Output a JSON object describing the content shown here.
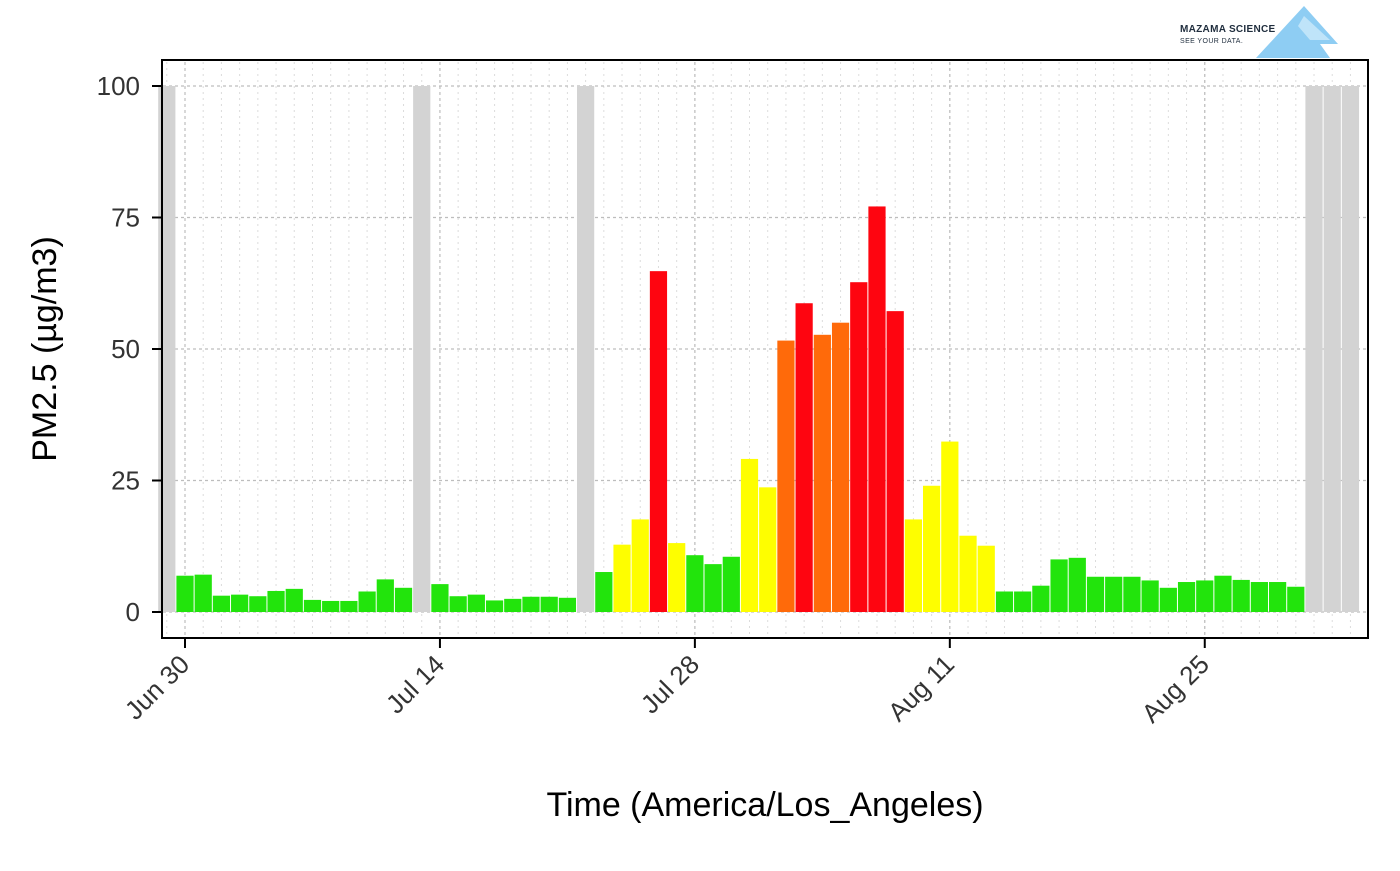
{
  "logo": {
    "title": "MAZAMA SCIENCE",
    "tagline": "SEE YOUR DATA."
  },
  "chart_data": {
    "type": "bar",
    "xlabel": "Time (America/Los_Angeles)",
    "ylabel": "PM2.5 (µg/m3)",
    "ylim": [
      0,
      100
    ],
    "yticks": [
      0,
      25,
      50,
      75,
      100
    ],
    "xticks": [
      "Jun 30",
      "Jul 14",
      "Jul 28",
      "Aug 11",
      "Aug 25"
    ],
    "xtick_dates": [
      "2023-06-30",
      "2023-07-14",
      "2023-07-28",
      "2023-08-11",
      "2023-08-25"
    ],
    "start_date": "2023-06-30",
    "grid": true,
    "colors": {
      "missing": "#d3d3d3",
      "good": "#22e40c",
      "moderate": "#fefe00",
      "usg": "#ff6a0a",
      "unhealthy": "#fe0510"
    },
    "bars": [
      {
        "date": "2023-06-29",
        "value": 100,
        "category": "missing"
      },
      {
        "date": "2023-06-30",
        "value": 6.9,
        "category": "good"
      },
      {
        "date": "2023-07-01",
        "value": 7.1,
        "category": "good"
      },
      {
        "date": "2023-07-02",
        "value": 3.1,
        "category": "good"
      },
      {
        "date": "2023-07-03",
        "value": 3.3,
        "category": "good"
      },
      {
        "date": "2023-07-04",
        "value": 3.0,
        "category": "good"
      },
      {
        "date": "2023-07-05",
        "value": 4.0,
        "category": "good"
      },
      {
        "date": "2023-07-06",
        "value": 4.4,
        "category": "good"
      },
      {
        "date": "2023-07-07",
        "value": 2.3,
        "category": "good"
      },
      {
        "date": "2023-07-08",
        "value": 2.1,
        "category": "good"
      },
      {
        "date": "2023-07-09",
        "value": 2.1,
        "category": "good"
      },
      {
        "date": "2023-07-10",
        "value": 3.9,
        "category": "good"
      },
      {
        "date": "2023-07-11",
        "value": 6.2,
        "category": "good"
      },
      {
        "date": "2023-07-12",
        "value": 4.6,
        "category": "good"
      },
      {
        "date": "2023-07-13",
        "value": 100,
        "category": "missing"
      },
      {
        "date": "2023-07-14",
        "value": 5.3,
        "category": "good"
      },
      {
        "date": "2023-07-15",
        "value": 3.0,
        "category": "good"
      },
      {
        "date": "2023-07-16",
        "value": 3.3,
        "category": "good"
      },
      {
        "date": "2023-07-17",
        "value": 2.2,
        "category": "good"
      },
      {
        "date": "2023-07-18",
        "value": 2.5,
        "category": "good"
      },
      {
        "date": "2023-07-19",
        "value": 2.9,
        "category": "good"
      },
      {
        "date": "2023-07-20",
        "value": 2.9,
        "category": "good"
      },
      {
        "date": "2023-07-21",
        "value": 2.7,
        "category": "good"
      },
      {
        "date": "2023-07-22",
        "value": 100,
        "category": "missing"
      },
      {
        "date": "2023-07-23",
        "value": 7.6,
        "category": "good"
      },
      {
        "date": "2023-07-24",
        "value": 12.8,
        "category": "moderate"
      },
      {
        "date": "2023-07-25",
        "value": 17.6,
        "category": "moderate"
      },
      {
        "date": "2023-07-26",
        "value": 64.8,
        "category": "unhealthy"
      },
      {
        "date": "2023-07-27",
        "value": 13.1,
        "category": "moderate"
      },
      {
        "date": "2023-07-28",
        "value": 10.8,
        "category": "good"
      },
      {
        "date": "2023-07-29",
        "value": 9.1,
        "category": "good"
      },
      {
        "date": "2023-07-30",
        "value": 10.5,
        "category": "good"
      },
      {
        "date": "2023-07-31",
        "value": 29.1,
        "category": "moderate"
      },
      {
        "date": "2023-08-01",
        "value": 23.7,
        "category": "moderate"
      },
      {
        "date": "2023-08-02",
        "value": 51.6,
        "category": "usg"
      },
      {
        "date": "2023-08-03",
        "value": 58.7,
        "category": "unhealthy"
      },
      {
        "date": "2023-08-04",
        "value": 52.7,
        "category": "usg"
      },
      {
        "date": "2023-08-05",
        "value": 55.0,
        "category": "usg"
      },
      {
        "date": "2023-08-06",
        "value": 62.7,
        "category": "unhealthy"
      },
      {
        "date": "2023-08-07",
        "value": 77.1,
        "category": "unhealthy"
      },
      {
        "date": "2023-08-08",
        "value": 57.2,
        "category": "unhealthy"
      },
      {
        "date": "2023-08-09",
        "value": 17.6,
        "category": "moderate"
      },
      {
        "date": "2023-08-10",
        "value": 24.0,
        "category": "moderate"
      },
      {
        "date": "2023-08-11",
        "value": 32.4,
        "category": "moderate"
      },
      {
        "date": "2023-08-12",
        "value": 14.5,
        "category": "moderate"
      },
      {
        "date": "2023-08-13",
        "value": 12.6,
        "category": "moderate"
      },
      {
        "date": "2023-08-14",
        "value": 3.9,
        "category": "good"
      },
      {
        "date": "2023-08-15",
        "value": 3.9,
        "category": "good"
      },
      {
        "date": "2023-08-16",
        "value": 5.0,
        "category": "good"
      },
      {
        "date": "2023-08-17",
        "value": 10.0,
        "category": "good"
      },
      {
        "date": "2023-08-18",
        "value": 10.3,
        "category": "good"
      },
      {
        "date": "2023-08-19",
        "value": 6.7,
        "category": "good"
      },
      {
        "date": "2023-08-20",
        "value": 6.7,
        "category": "good"
      },
      {
        "date": "2023-08-21",
        "value": 6.7,
        "category": "good"
      },
      {
        "date": "2023-08-22",
        "value": 6.0,
        "category": "good"
      },
      {
        "date": "2023-08-23",
        "value": 4.6,
        "category": "good"
      },
      {
        "date": "2023-08-24",
        "value": 5.7,
        "category": "good"
      },
      {
        "date": "2023-08-25",
        "value": 6.0,
        "category": "good"
      },
      {
        "date": "2023-08-26",
        "value": 6.9,
        "category": "good"
      },
      {
        "date": "2023-08-27",
        "value": 6.1,
        "category": "good"
      },
      {
        "date": "2023-08-28",
        "value": 5.7,
        "category": "good"
      },
      {
        "date": "2023-08-29",
        "value": 5.7,
        "category": "good"
      },
      {
        "date": "2023-08-30",
        "value": 4.8,
        "category": "good"
      },
      {
        "date": "2023-08-31",
        "value": 100,
        "category": "missing"
      },
      {
        "date": "2023-09-01",
        "value": 100,
        "category": "missing"
      },
      {
        "date": "2023-09-02",
        "value": 100,
        "category": "missing"
      }
    ]
  }
}
